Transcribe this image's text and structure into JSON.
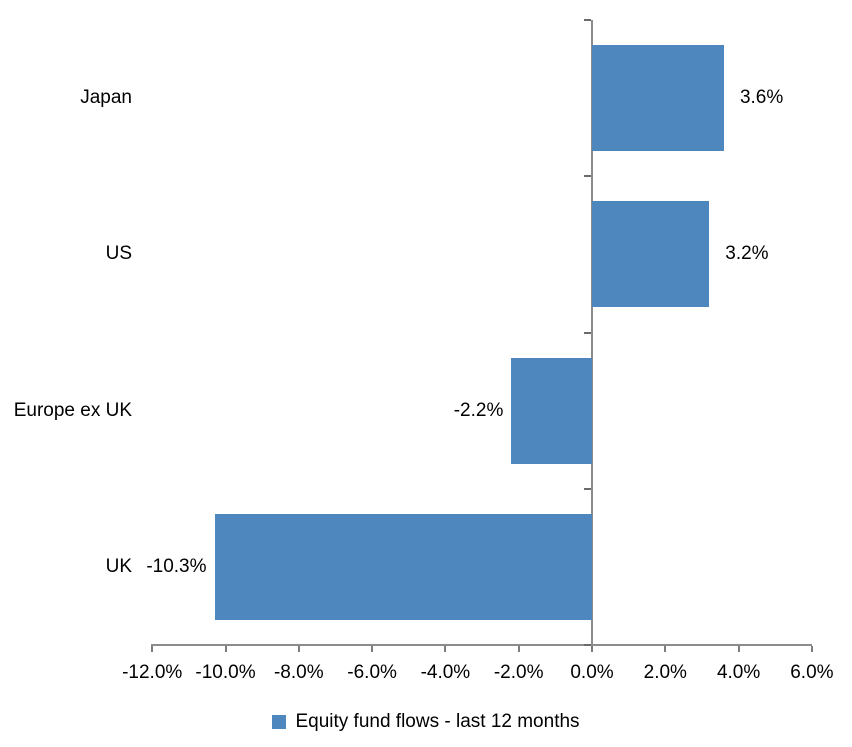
{
  "chart_data": {
    "type": "bar",
    "orientation": "horizontal",
    "categories": [
      "Japan",
      "US",
      "Europe ex UK",
      "UK"
    ],
    "series": [
      {
        "name": "Equity fund flows - last 12 months",
        "values": [
          3.6,
          3.2,
          -2.2,
          -10.3
        ],
        "data_labels": [
          "3.6%",
          "3.2%",
          "-2.2%",
          "-10.3%"
        ]
      }
    ],
    "xlim": [
      -12,
      6
    ],
    "x_tick_values": [
      -12,
      -10,
      -8,
      -6,
      -4,
      -2,
      0,
      2,
      4,
      6
    ],
    "x_tick_labels": [
      "-12.0%",
      "-10.0%",
      "-8.0%",
      "-6.0%",
      "-4.0%",
      "-2.0%",
      "0.0%",
      "2.0%",
      "4.0%",
      "6.0%"
    ],
    "grid": false,
    "legend": "Equity fund flows - last 12 months",
    "legend_position": "bottom",
    "colors": {
      "bar": "#4e86be",
      "axis": "#8c8c8c",
      "text": "#000000",
      "background": "#ffffff"
    }
  }
}
